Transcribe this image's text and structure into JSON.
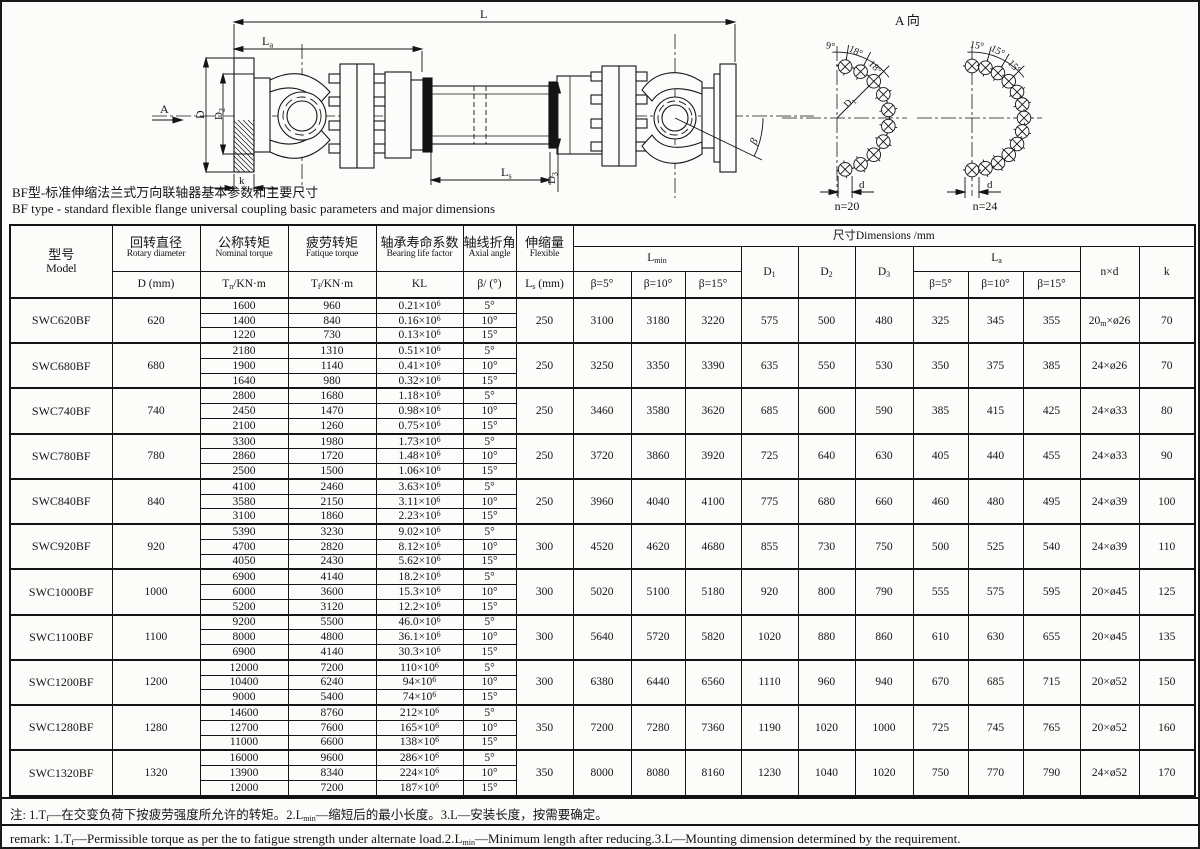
{
  "page": {
    "title_cn": "BF型-标准伸缩法兰式万向联轴器基本参数和主要尺寸",
    "title_en": "BF type - standard flexible flange universal coupling basic parameters and major dimensions",
    "note_cn": "注: 1.T~f~—在交变负荷下按疲劳强度所允许的转矩。2.L~min~—缩短后的最小长度。3.L—安装长度，按需要确定。",
    "note_en": "remark: 1.T~f~—Permissible torque as per the to fatigue strength under alternate load.2.L~min~—Minimum length after reducing.3.L—Mounting dimension determined by the requirement."
  },
  "drawing": {
    "labels": {
      "L": "L",
      "La": "L~a~",
      "Ls": "L~s~",
      "D": "D",
      "D2": "D~2~",
      "D3": "D~3~",
      "k": "k",
      "beta": "β",
      "A": "A",
      "view_title": "A 向",
      "D1": "D~1~",
      "d": "d",
      "n_left": "n=20",
      "n_right": "n=24",
      "angles_left": [
        "9°",
        "18°",
        "18°"
      ],
      "angles_right": [
        "15°",
        "15°",
        "15°"
      ]
    }
  },
  "table": {
    "header": {
      "model": {
        "cn": "型号",
        "en": "Model"
      },
      "cols": [
        {
          "cn": "回转直径",
          "en": "Rotary diameter",
          "unit": "D (mm)"
        },
        {
          "cn": "公称转矩",
          "en": "Nominal torque",
          "unit": "T~n~/KN·m"
        },
        {
          "cn": "疲劳转矩",
          "en": "Fatique torque",
          "unit": "T~f~/KN·m"
        },
        {
          "cn": "轴承寿命系数",
          "en": "Bearing life factor",
          "unit": "KL"
        },
        {
          "cn": "轴线折角",
          "en": "Axial angle",
          "unit": "β/ (°)"
        },
        {
          "cn": "伸缩量",
          "en": "Flexible",
          "unit": "L~s~ (mm)"
        }
      ],
      "dims_title": "尺寸Dimensions /mm",
      "lmin_label": "L~min~",
      "la_label": "L~a~",
      "beta_cols": [
        "β=5°",
        "β=10°",
        "β=15°"
      ],
      "d1": "D~1~",
      "d2": "D~2~",
      "d3": "D~3~",
      "nxd": "n×d",
      "k": "k"
    },
    "rows": [
      {
        "model": "SWC620BF",
        "d": "620",
        "ls": "250",
        "sub": [
          [
            "1600",
            "960",
            "0.21×10^6^",
            "5°"
          ],
          [
            "1400",
            "840",
            "0.16×10^6^",
            "10°"
          ],
          [
            "1220",
            "730",
            "0.13×10^6^",
            "15°"
          ]
        ],
        "lmin": [
          "3100",
          "3180",
          "3220"
        ],
        "dd": [
          "575",
          "500",
          "480"
        ],
        "la": [
          "325",
          "345",
          "355"
        ],
        "nxd": "20~m~×ø26",
        "k": "70"
      },
      {
        "model": "SWC680BF",
        "d": "680",
        "ls": "250",
        "sub": [
          [
            "2180",
            "1310",
            "0.51×10^6^",
            "5°"
          ],
          [
            "1900",
            "1140",
            "0.41×10^6^",
            "10°"
          ],
          [
            "1640",
            "980",
            "0.32×10^6^",
            "15°"
          ]
        ],
        "lmin": [
          "3250",
          "3350",
          "3390"
        ],
        "dd": [
          "635",
          "550",
          "530"
        ],
        "la": [
          "350",
          "375",
          "385"
        ],
        "nxd": "24×ø26",
        "k": "70"
      },
      {
        "model": "SWC740BF",
        "d": "740",
        "ls": "250",
        "sub": [
          [
            "2800",
            "1680",
            "1.18×10^6^",
            "5°"
          ],
          [
            "2450",
            "1470",
            "0.98×10^6^",
            "10°"
          ],
          [
            "2100",
            "1260",
            "0.75×10^6^",
            "15°"
          ]
        ],
        "lmin": [
          "3460",
          "3580",
          "3620"
        ],
        "dd": [
          "685",
          "600",
          "590"
        ],
        "la": [
          "385",
          "415",
          "425"
        ],
        "nxd": "24×ø33",
        "k": "80"
      },
      {
        "model": "SWC780BF",
        "d": "780",
        "ls": "250",
        "sub": [
          [
            "3300",
            "1980",
            "1.73×10^6^",
            "5°"
          ],
          [
            "2860",
            "1720",
            "1.48×10^6^",
            "10°"
          ],
          [
            "2500",
            "1500",
            "1.06×10^6^",
            "15°"
          ]
        ],
        "lmin": [
          "3720",
          "3860",
          "3920"
        ],
        "dd": [
          "725",
          "640",
          "630"
        ],
        "la": [
          "405",
          "440",
          "455"
        ],
        "nxd": "24×ø33",
        "k": "90"
      },
      {
        "model": "SWC840BF",
        "d": "840",
        "ls": "250",
        "sub": [
          [
            "4100",
            "2460",
            "3.63×10^6^",
            "5°"
          ],
          [
            "3580",
            "2150",
            "3.11×10^6^",
            "10°"
          ],
          [
            "3100",
            "1860",
            "2.23×10^6^",
            "15°"
          ]
        ],
        "lmin": [
          "3960",
          "4040",
          "4100"
        ],
        "dd": [
          "775",
          "680",
          "660"
        ],
        "la": [
          "460",
          "480",
          "495"
        ],
        "nxd": "24×ø39",
        "k": "100"
      },
      {
        "model": "SWC920BF",
        "d": "920",
        "ls": "300",
        "sub": [
          [
            "5390",
            "3230",
            "9.02×10^6^",
            "5°"
          ],
          [
            "4700",
            "2820",
            "8.12×10^6^",
            "10°"
          ],
          [
            "4050",
            "2430",
            "5.62×10^6^",
            "15°"
          ]
        ],
        "lmin": [
          "4520",
          "4620",
          "4680"
        ],
        "dd": [
          "855",
          "730",
          "750"
        ],
        "la": [
          "500",
          "525",
          "540"
        ],
        "nxd": "24×ø39",
        "k": "110"
      },
      {
        "model": "SWC1000BF",
        "d": "1000",
        "ls": "300",
        "sub": [
          [
            "6900",
            "4140",
            "18.2×10^6^",
            "5°"
          ],
          [
            "6000",
            "3600",
            "15.3×10^6^",
            "10°"
          ],
          [
            "5200",
            "3120",
            "12.2×10^6^",
            "15°"
          ]
        ],
        "lmin": [
          "5020",
          "5100",
          "5180"
        ],
        "dd": [
          "920",
          "800",
          "790"
        ],
        "la": [
          "555",
          "575",
          "595"
        ],
        "nxd": "20×ø45",
        "k": "125"
      },
      {
        "model": "SWC1100BF",
        "d": "1100",
        "ls": "300",
        "sub": [
          [
            "9200",
            "5500",
            "46.0×10^6^",
            "5°"
          ],
          [
            "8000",
            "4800",
            "36.1×10^6^",
            "10°"
          ],
          [
            "6900",
            "4140",
            "30.3×10^6^",
            "15°"
          ]
        ],
        "lmin": [
          "5640",
          "5720",
          "5820"
        ],
        "dd": [
          "1020",
          "880",
          "860"
        ],
        "la": [
          "610",
          "630",
          "655"
        ],
        "nxd": "20×ø45",
        "k": "135"
      },
      {
        "model": "SWC1200BF",
        "d": "1200",
        "ls": "300",
        "sub": [
          [
            "12000",
            "7200",
            "110×10^6^",
            "5°"
          ],
          [
            "10400",
            "6240",
            "94×10^6^",
            "10°"
          ],
          [
            "9000",
            "5400",
            "74×10^6^",
            "15°"
          ]
        ],
        "lmin": [
          "6380",
          "6440",
          "6560"
        ],
        "dd": [
          "1110",
          "960",
          "940"
        ],
        "la": [
          "670",
          "685",
          "715"
        ],
        "nxd": "20×ø52",
        "k": "150"
      },
      {
        "model": "SWC1280BF",
        "d": "1280",
        "ls": "350",
        "sub": [
          [
            "14600",
            "8760",
            "212×10^6^",
            "5°"
          ],
          [
            "12700",
            "7600",
            "165×10^6^",
            "10°"
          ],
          [
            "11000",
            "6600",
            "138×10^6^",
            "15°"
          ]
        ],
        "lmin": [
          "7200",
          "7280",
          "7360"
        ],
        "dd": [
          "1190",
          "1020",
          "1000"
        ],
        "la": [
          "725",
          "745",
          "765"
        ],
        "nxd": "20×ø52",
        "k": "160"
      },
      {
        "model": "SWC1320BF",
        "d": "1320",
        "ls": "350",
        "sub": [
          [
            "16000",
            "9600",
            "286×10^6^",
            "5°"
          ],
          [
            "13900",
            "8340",
            "224×10^6^",
            "10°"
          ],
          [
            "12000",
            "7200",
            "187×10^6^",
            "15°"
          ]
        ],
        "lmin": [
          "8000",
          "8080",
          "8160"
        ],
        "dd": [
          "1230",
          "1040",
          "1020"
        ],
        "la": [
          "750",
          "770",
          "790"
        ],
        "nxd": "24×ø52",
        "k": "170"
      }
    ]
  }
}
